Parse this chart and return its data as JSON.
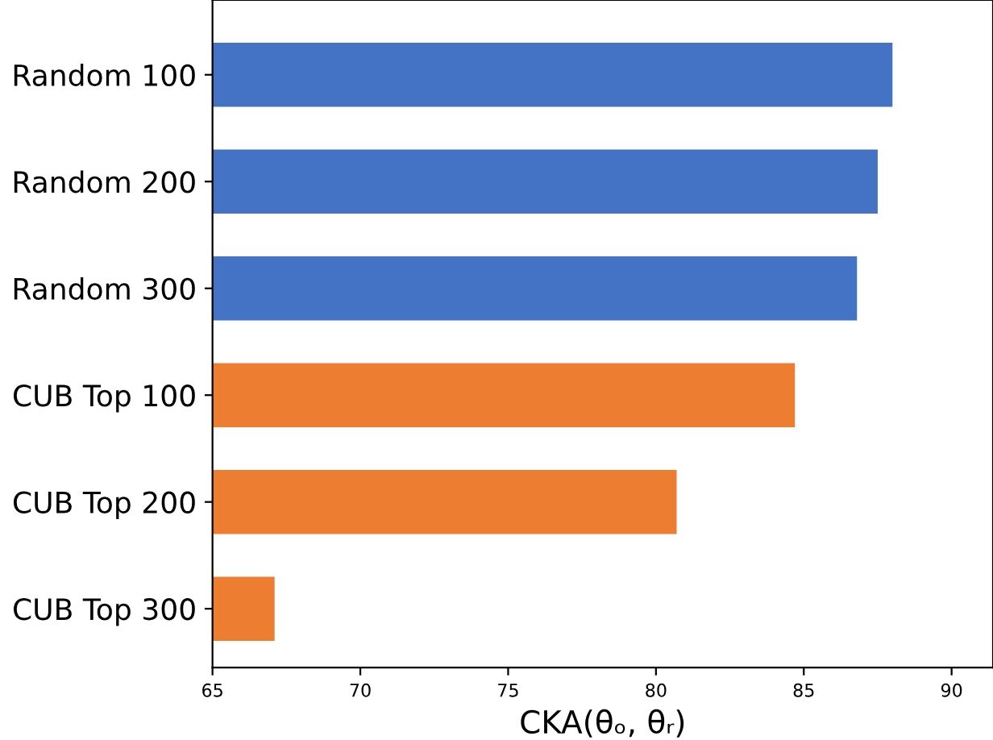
{
  "chart_data": {
    "type": "bar",
    "orientation": "horizontal",
    "xlabel": "CKA(θₒ, θᵣ)",
    "categories": [
      "Random 100",
      "Random 200",
      "Random 300",
      "CUB Top 100",
      "CUB Top 200",
      "CUB Top 300"
    ],
    "values": [
      88.0,
      87.5,
      86.8,
      84.7,
      80.7,
      67.1
    ],
    "colors": [
      "#4472c4",
      "#4472c4",
      "#4472c4",
      "#ed7d31",
      "#ed7d31",
      "#ed7d31"
    ],
    "xlim": [
      65,
      91.4
    ],
    "xticks": [
      65,
      70,
      75,
      80,
      85,
      90
    ],
    "grid": false,
    "legend": false
  }
}
